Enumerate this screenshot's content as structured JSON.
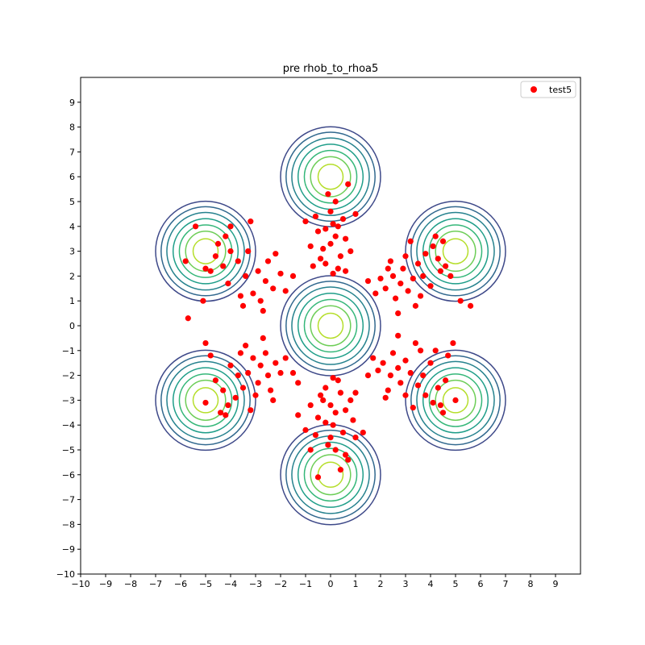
{
  "chart_data": {
    "type": "scatter",
    "title": "pre rhob_to_rhoa5",
    "xlabel": "",
    "ylabel": "",
    "xlim": [
      -10,
      10
    ],
    "ylim": [
      -10,
      10
    ],
    "xticks": [
      "−10",
      "−9",
      "−8",
      "−7",
      "−6",
      "−5",
      "−4",
      "−3",
      "−2",
      "−1",
      "0",
      "1",
      "2",
      "3",
      "4",
      "5",
      "6",
      "7",
      "8",
      "9"
    ],
    "yticks": [
      "−10",
      "−9",
      "−8",
      "−7",
      "−6",
      "−5",
      "−4",
      "−3",
      "−2",
      "−1",
      "0",
      "1",
      "2",
      "3",
      "4",
      "5",
      "6",
      "7",
      "8",
      "9"
    ],
    "grid": false,
    "legend": {
      "position": "top-right",
      "entries": [
        {
          "name": "test5",
          "color": "#ff0000",
          "marker": "circle"
        }
      ]
    },
    "contours": {
      "centers": [
        [
          0,
          0
        ],
        [
          0,
          6
        ],
        [
          0,
          -6
        ],
        [
          5,
          3
        ],
        [
          -5,
          3
        ],
        [
          5,
          -3
        ],
        [
          -5,
          -3
        ]
      ],
      "radii": [
        0.5,
        0.8,
        1.05,
        1.3,
        1.55,
        1.78,
        2.0
      ],
      "colors": [
        "#b5de2b",
        "#6ece58",
        "#35b779",
        "#1f9e89",
        "#26828e",
        "#31688e",
        "#3e4989",
        "#482878"
      ]
    },
    "series": [
      {
        "name": "test5",
        "color": "#ff0000",
        "points": [
          [
            0.0,
            3.3
          ],
          [
            0.2,
            3.6
          ],
          [
            -0.3,
            3.1
          ],
          [
            0.4,
            2.8
          ],
          [
            -0.2,
            2.5
          ],
          [
            0.1,
            4.1
          ],
          [
            -0.5,
            3.8
          ],
          [
            0.6,
            3.5
          ],
          [
            0.3,
            2.3
          ],
          [
            -0.4,
            2.7
          ],
          [
            0.0,
            4.6
          ],
          [
            0.5,
            4.3
          ],
          [
            -0.6,
            4.4
          ],
          [
            0.8,
            3.0
          ],
          [
            -0.8,
            3.2
          ],
          [
            0.2,
            5.0
          ],
          [
            -0.1,
            5.3
          ],
          [
            0.7,
            5.7
          ],
          [
            -1.0,
            4.2
          ],
          [
            1.0,
            4.5
          ],
          [
            0.1,
            2.1
          ],
          [
            -0.2,
            3.9
          ],
          [
            0.3,
            4.0
          ],
          [
            -0.7,
            2.4
          ],
          [
            0.6,
            2.2
          ],
          [
            2.8,
            1.7
          ],
          [
            2.5,
            2.0
          ],
          [
            3.1,
            1.4
          ],
          [
            2.2,
            1.5
          ],
          [
            2.9,
            2.3
          ],
          [
            3.3,
            1.9
          ],
          [
            2.6,
            1.1
          ],
          [
            2.0,
            1.9
          ],
          [
            3.5,
            2.5
          ],
          [
            3.8,
            2.9
          ],
          [
            4.1,
            3.2
          ],
          [
            4.3,
            2.7
          ],
          [
            4.6,
            2.4
          ],
          [
            3.0,
            2.8
          ],
          [
            2.4,
            2.6
          ],
          [
            1.8,
            1.3
          ],
          [
            3.6,
            1.2
          ],
          [
            4.0,
            1.6
          ],
          [
            4.5,
            3.4
          ],
          [
            4.8,
            2.0
          ],
          [
            5.2,
            1.0
          ],
          [
            5.6,
            0.8
          ],
          [
            1.5,
            1.8
          ],
          [
            3.4,
            0.8
          ],
          [
            2.7,
            0.5
          ],
          [
            4.2,
            3.6
          ],
          [
            3.7,
            2.0
          ],
          [
            4.4,
            2.2
          ],
          [
            2.3,
            2.3
          ],
          [
            3.2,
            3.4
          ],
          [
            -2.6,
            1.8
          ],
          [
            -2.9,
            2.2
          ],
          [
            -2.3,
            1.5
          ],
          [
            -3.1,
            1.3
          ],
          [
            -2.5,
            2.6
          ],
          [
            -3.4,
            2.0
          ],
          [
            -2.0,
            2.1
          ],
          [
            -2.8,
            1.0
          ],
          [
            -3.7,
            2.6
          ],
          [
            -4.0,
            3.0
          ],
          [
            -4.3,
            2.4
          ],
          [
            -4.6,
            2.8
          ],
          [
            -3.3,
            3.0
          ],
          [
            -2.2,
            2.9
          ],
          [
            -1.8,
            1.4
          ],
          [
            -3.6,
            1.2
          ],
          [
            -4.1,
            1.7
          ],
          [
            -4.5,
            3.3
          ],
          [
            -4.8,
            2.2
          ],
          [
            -5.1,
            1.0
          ],
          [
            -5.7,
            0.3
          ],
          [
            -1.5,
            2.0
          ],
          [
            -3.5,
            0.8
          ],
          [
            -2.7,
            0.6
          ],
          [
            -4.2,
            3.6
          ],
          [
            -5.0,
            2.3
          ],
          [
            -5.4,
            4.0
          ],
          [
            -4.0,
            4.0
          ],
          [
            -3.2,
            4.2
          ],
          [
            -5.8,
            2.6
          ],
          [
            -2.8,
            -1.6
          ],
          [
            -2.5,
            -2.0
          ],
          [
            -3.1,
            -1.3
          ],
          [
            -2.2,
            -1.5
          ],
          [
            -2.9,
            -2.3
          ],
          [
            -3.3,
            -1.9
          ],
          [
            -2.6,
            -1.1
          ],
          [
            -2.0,
            -1.9
          ],
          [
            -3.5,
            -2.5
          ],
          [
            -3.8,
            -2.9
          ],
          [
            -4.1,
            -3.2
          ],
          [
            -4.3,
            -2.6
          ],
          [
            -4.6,
            -2.2
          ],
          [
            -3.0,
            -2.8
          ],
          [
            -2.4,
            -2.6
          ],
          [
            -1.8,
            -1.3
          ],
          [
            -3.6,
            -1.1
          ],
          [
            -4.0,
            -1.6
          ],
          [
            -4.4,
            -3.5
          ],
          [
            -4.8,
            -1.2
          ],
          [
            -5.0,
            -0.7
          ],
          [
            -1.5,
            -1.9
          ],
          [
            -3.4,
            -0.8
          ],
          [
            -2.7,
            -0.5
          ],
          [
            -4.2,
            -3.6
          ],
          [
            -5.0,
            -3.1
          ],
          [
            -3.2,
            -3.4
          ],
          [
            -1.3,
            -2.3
          ],
          [
            -3.7,
            -2.0
          ],
          [
            -2.3,
            -3.0
          ],
          [
            2.7,
            -1.7
          ],
          [
            2.4,
            -2.0
          ],
          [
            3.0,
            -1.4
          ],
          [
            2.1,
            -1.5
          ],
          [
            2.8,
            -2.3
          ],
          [
            3.2,
            -1.9
          ],
          [
            2.5,
            -1.1
          ],
          [
            1.9,
            -1.8
          ],
          [
            3.5,
            -2.4
          ],
          [
            3.8,
            -2.8
          ],
          [
            4.1,
            -3.1
          ],
          [
            4.3,
            -2.5
          ],
          [
            4.6,
            -2.2
          ],
          [
            3.0,
            -2.8
          ],
          [
            2.3,
            -2.6
          ],
          [
            1.7,
            -1.3
          ],
          [
            3.6,
            -1.0
          ],
          [
            4.0,
            -1.5
          ],
          [
            4.5,
            -3.5
          ],
          [
            4.7,
            -1.2
          ],
          [
            4.9,
            -0.7
          ],
          [
            1.5,
            -2.0
          ],
          [
            3.4,
            -0.7
          ],
          [
            2.7,
            -0.4
          ],
          [
            4.4,
            -3.2
          ],
          [
            3.3,
            -3.3
          ],
          [
            3.7,
            -2.0
          ],
          [
            2.2,
            -2.9
          ],
          [
            4.2,
            -1.0
          ],
          [
            5.0,
            -3.0
          ],
          [
            0.0,
            -3.2
          ],
          [
            0.2,
            -3.5
          ],
          [
            -0.3,
            -3.0
          ],
          [
            0.4,
            -2.7
          ],
          [
            -0.2,
            -2.5
          ],
          [
            0.1,
            -4.0
          ],
          [
            -0.5,
            -3.7
          ],
          [
            0.6,
            -3.4
          ],
          [
            0.3,
            -2.2
          ],
          [
            -0.4,
            -2.8
          ],
          [
            0.0,
            -4.5
          ],
          [
            0.5,
            -4.3
          ],
          [
            -0.6,
            -4.4
          ],
          [
            0.8,
            -3.0
          ],
          [
            -0.8,
            -3.2
          ],
          [
            0.2,
            -5.0
          ],
          [
            -0.1,
            -4.8
          ],
          [
            0.7,
            -5.4
          ],
          [
            -1.0,
            -4.2
          ],
          [
            1.0,
            -4.5
          ],
          [
            0.1,
            -2.1
          ],
          [
            -0.2,
            -3.9
          ],
          [
            0.4,
            -5.8
          ],
          [
            -0.5,
            -6.1
          ],
          [
            0.6,
            -5.2
          ],
          [
            1.3,
            -4.3
          ],
          [
            -1.3,
            -3.6
          ],
          [
            1.0,
            -2.7
          ],
          [
            -0.8,
            -5.0
          ],
          [
            0.9,
            -3.8
          ]
        ]
      }
    ]
  }
}
